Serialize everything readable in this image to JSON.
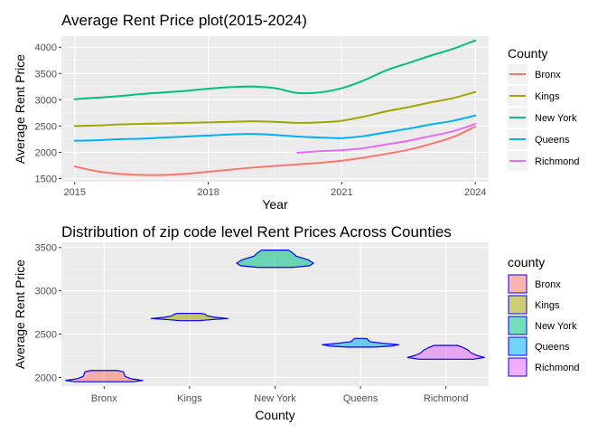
{
  "chart_data": [
    {
      "type": "line",
      "title": "Average Rent Price plot(2015-2024)",
      "xlabel": "Year",
      "ylabel": "Average Rent Price",
      "xlim": [
        2014.7,
        2024.3
      ],
      "ylim": [
        1440,
        4210
      ],
      "xticks": [
        2015,
        2018,
        2021,
        2024
      ],
      "yticks": [
        1500,
        2000,
        2500,
        3000,
        3500,
        4000
      ],
      "grid": true,
      "legend": {
        "title": "County",
        "position": "right"
      },
      "series": [
        {
          "name": "Bronx",
          "color": "#F8766D",
          "x": [
            2015,
            2015.5,
            2016,
            2016.5,
            2017,
            2017.5,
            2018,
            2018.5,
            2019,
            2019.5,
            2020,
            2020.5,
            2021,
            2021.5,
            2022,
            2022.5,
            2023,
            2023.5,
            2024
          ],
          "y": [
            1730,
            1640,
            1590,
            1570,
            1570,
            1590,
            1630,
            1670,
            1710,
            1740,
            1770,
            1800,
            1840,
            1900,
            1970,
            2050,
            2160,
            2290,
            2490
          ]
        },
        {
          "name": "Kings",
          "color": "#A3A500",
          "x": [
            2015,
            2015.5,
            2016,
            2016.5,
            2017,
            2017.5,
            2018,
            2018.5,
            2019,
            2019.5,
            2020,
            2020.5,
            2021,
            2021.5,
            2022,
            2022.5,
            2023,
            2023.5,
            2024
          ],
          "y": [
            2500,
            2510,
            2530,
            2540,
            2550,
            2560,
            2570,
            2580,
            2590,
            2580,
            2560,
            2570,
            2600,
            2680,
            2780,
            2860,
            2950,
            3030,
            3150
          ]
        },
        {
          "name": "New York",
          "color": "#00BF7D",
          "x": [
            2015,
            2015.5,
            2016,
            2016.5,
            2017,
            2017.5,
            2018,
            2018.5,
            2019,
            2019.5,
            2020,
            2020.5,
            2021,
            2021.5,
            2022,
            2022.5,
            2023,
            2023.5,
            2024
          ],
          "y": [
            3010,
            3040,
            3070,
            3110,
            3140,
            3170,
            3210,
            3240,
            3250,
            3220,
            3130,
            3140,
            3220,
            3370,
            3560,
            3700,
            3840,
            3970,
            4130
          ]
        },
        {
          "name": "Queens",
          "color": "#00B0F6",
          "x": [
            2015,
            2015.5,
            2016,
            2016.5,
            2017,
            2017.5,
            2018,
            2018.5,
            2019,
            2019.5,
            2020,
            2020.5,
            2021,
            2021.5,
            2022,
            2022.5,
            2023,
            2023.5,
            2024
          ],
          "y": [
            2220,
            2230,
            2250,
            2260,
            2280,
            2300,
            2320,
            2340,
            2350,
            2330,
            2300,
            2280,
            2270,
            2310,
            2380,
            2450,
            2530,
            2600,
            2700
          ]
        },
        {
          "name": "Richmond",
          "color": "#E76BF3",
          "x": [
            2020,
            2020.5,
            2021,
            2021.5,
            2022,
            2022.5,
            2023,
            2023.5,
            2024
          ],
          "y": [
            1990,
            2020,
            2040,
            2080,
            2150,
            2220,
            2310,
            2400,
            2540
          ]
        }
      ]
    },
    {
      "type": "violin",
      "title": "Distribution of zip code level Rent Prices Across Counties",
      "xlabel": "County",
      "ylabel": "Average Rent Price",
      "categories": [
        "Bronx",
        "Kings",
        "New York",
        "Queens",
        "Richmond"
      ],
      "ylim": [
        1900,
        3560
      ],
      "yticks": [
        2000,
        2500,
        3000,
        3500
      ],
      "grid": true,
      "legend": {
        "title": "county",
        "position": "right"
      },
      "outline_color": "#0000FF",
      "violins": [
        {
          "county": "Bronx",
          "color": "#F8766D",
          "ymin": 1950,
          "ymax": 2080,
          "profile": [
            [
              1950,
              0.75
            ],
            [
              1965,
              1.0
            ],
            [
              1985,
              0.7
            ],
            [
              2010,
              0.55
            ],
            [
              2040,
              0.52
            ],
            [
              2065,
              0.5
            ],
            [
              2080,
              0.35
            ]
          ]
        },
        {
          "county": "Kings",
          "color": "#A3A500",
          "ymin": 2655,
          "ymax": 2740,
          "profile": [
            [
              2655,
              0.25
            ],
            [
              2668,
              0.6
            ],
            [
              2680,
              1.0
            ],
            [
              2695,
              0.65
            ],
            [
              2712,
              0.45
            ],
            [
              2730,
              0.4
            ],
            [
              2740,
              0.3
            ]
          ]
        },
        {
          "county": "New York",
          "color": "#00BF7D",
          "ymin": 3270,
          "ymax": 3470,
          "profile": [
            [
              3270,
              0.45
            ],
            [
              3290,
              0.9
            ],
            [
              3320,
              1.0
            ],
            [
              3360,
              0.85
            ],
            [
              3400,
              0.55
            ],
            [
              3440,
              0.45
            ],
            [
              3470,
              0.35
            ]
          ]
        },
        {
          "county": "Queens",
          "color": "#00B0F6",
          "ymin": 2350,
          "ymax": 2450,
          "profile": [
            [
              2350,
              0.35
            ],
            [
              2362,
              0.8
            ],
            [
              2378,
              1.0
            ],
            [
              2394,
              0.6
            ],
            [
              2412,
              0.25
            ],
            [
              2432,
              0.2
            ],
            [
              2450,
              0.16
            ]
          ]
        },
        {
          "county": "Richmond",
          "color": "#E76BF3",
          "ymin": 2210,
          "ymax": 2370,
          "profile": [
            [
              2210,
              0.7
            ],
            [
              2230,
              1.0
            ],
            [
              2255,
              0.8
            ],
            [
              2285,
              0.65
            ],
            [
              2315,
              0.58
            ],
            [
              2345,
              0.45
            ],
            [
              2370,
              0.3
            ]
          ]
        }
      ]
    }
  ]
}
